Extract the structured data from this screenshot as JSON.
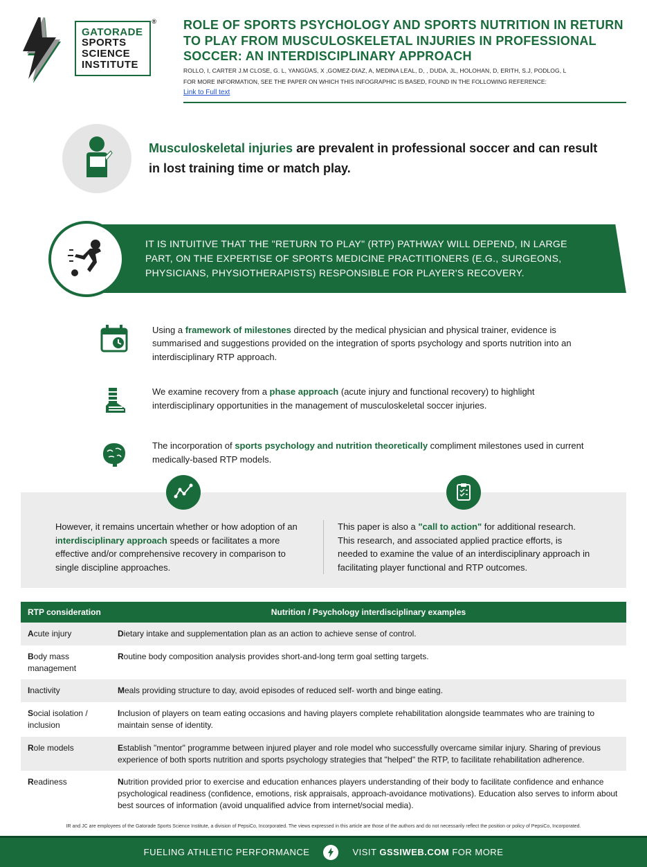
{
  "logo": {
    "l1": "GATORADE",
    "l2": "SPORTS",
    "l3": "SCIENCE",
    "l4": "INSTITUTE",
    "reg": "®"
  },
  "header": {
    "title": "ROLE OF SPORTS PSYCHOLOGY AND SPORTS NUTRITION IN RETURN TO PLAY FROM MUSCULOSKELETAL INJURIES IN PROFESSIONAL SOCCER: AN INTERDISCIPLINARY APPROACH",
    "authors": "ROLLO, I, CARTER J.M CLOSE, G. L, YANGÜAS, X ,GOMEZ-DIAZ, A, MEDINA LEAL, D, , DUDA, JL, HOLOHAN, D, ERITH, S.J, PODLOG, L",
    "moreinfo": "FOR MORE INFORMATION, SEE THE PAPER ON WHICH THIS INFOGRAPHIC IS BASED, FOUND IN THE FOLLOWING REFERENCE:",
    "link": "Link to Full text"
  },
  "intro": {
    "hl": "Musculoskeletal injuries",
    "rest": " are prevalent in professional soccer and can result in lost training time or match play."
  },
  "banner": "IT IS INTUITIVE THAT THE \"RETURN TO PLAY\" (RTP) PATHWAY WILL DEPEND, IN LARGE PART, ON THE EXPERTISE OF SPORTS MEDICINE PRACTITIONERS (E.G., SURGEONS, PHYSICIANS, PHYSIOTHERAPISTS) RESPONSIBLE FOR PLAYER'S RECOVERY.",
  "bullets": [
    {
      "pre": "Using a ",
      "hl": "framework of milestones",
      "post": " directed by the medical physician and physical trainer, evidence is summarised and suggestions provided on the integration of sports psychology and sports nutrition into an interdisciplinary RTP approach."
    },
    {
      "pre": "We examine recovery from a ",
      "hl": "phase approach",
      "post": " (acute injury and functional recovery) to highlight interdisciplinary opportunities in the management of musculoskeletal soccer injuries."
    },
    {
      "pre": "The incorporation of ",
      "hl": "sports psychology and nutrition theoretically",
      "post": " compliment milestones used in current medically-based RTP models."
    }
  ],
  "duo": {
    "left": {
      "pre": "However, it remains uncertain whether or how adoption of an i",
      "hl": "nterdisciplinary approach",
      "post": " speeds or facilitates a more effective and/or comprehensive recovery in comparison to single discipline approaches."
    },
    "right": {
      "pre": "This paper is also a ",
      "hl": "\"call to action\"",
      "post": " for additional research. This research, and associated applied practice efforts, is needed to examine the value of an interdisciplinary approach in facilitating player functional and RTP outcomes."
    }
  },
  "table": {
    "headers": [
      "RTP consideration",
      "Nutrition / Psychology interdisciplinary examples"
    ],
    "rows": [
      {
        "c1b": "A",
        "c1": "cute injury",
        "c2b": "D",
        "c2": "ietary intake and supplementation plan as an action to achieve sense of control."
      },
      {
        "c1b": "B",
        "c1": "ody mass management",
        "c2b": "R",
        "c2": "outine body composition analysis provides short-and-long term goal setting targets."
      },
      {
        "c1b": "I",
        "c1": "nactivity",
        "c2b": "M",
        "c2": "eals providing structure to day, avoid episodes of reduced self- worth and binge eating."
      },
      {
        "c1b": "S",
        "c1": "ocial isolation / inclusion",
        "c2b": "I",
        "c2": "nclusion of players on team eating occasions and having players complete rehabilitation alongside teammates who are training to maintain sense of identity."
      },
      {
        "c1b": "R",
        "c1": "ole models",
        "c2b": "E",
        "c2": "stablish \"mentor\" programme between injured player and role model who successfully overcame similar injury. Sharing of previous experience of both sports nutrition and sports psychology strategies  that \"helped\" the RTP,  to facilitate rehabilitation adherence."
      },
      {
        "c1b": "R",
        "c1": "eadiness",
        "c2b": "N",
        "c2": "utrition provided prior to exercise and education enhances players understanding of their body to facilitate confidence and enhance psychological readiness (confidence, emotions, risk appraisals, approach-avoidance motivations). Education also serves to inform about best sources of information (avoid unqualified advice from internet/social media)."
      }
    ]
  },
  "disclaimer": "IR and JC are employees of the Gatorade Sports Science Institute, a division of PepsiCo, Incorporated. The views expressed in this article are those of the authors and do not necessarily reflect the position or policy of PepsiCo, Incorporated.",
  "footer": {
    "left": "FUELING ATHLETIC PERFORMANCE",
    "visit": "VISIT ",
    "site": "GSSIWEB.COM",
    "more": " FOR MORE"
  },
  "colors": {
    "green": "#1a6b3c",
    "lightgray": "#ececec"
  }
}
